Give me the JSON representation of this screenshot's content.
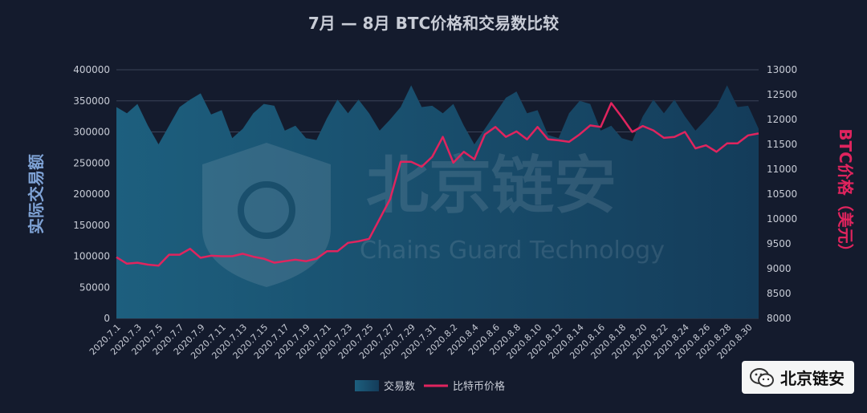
{
  "colors": {
    "background": "#141b2d",
    "area": "#1e5a78",
    "line": "#e0245e",
    "text": "#c8ccd6",
    "left_axis_label": "#7fa3d6",
    "right_axis_label": "#e0245e"
  },
  "watermark": {
    "title": "北京链安",
    "subtitle": "Chains Guard Technology"
  },
  "badge": {
    "icon": "wechat-icon",
    "text": "北京链安"
  },
  "chart_data": {
    "type": "area+line",
    "title": "7月 — 8月 BTC价格和交易数比较",
    "ylabel_left": "实际交易额",
    "ylabel_right": "BTC价格（美元）",
    "ylim_left": [
      0,
      400000
    ],
    "yticks_left": [
      0,
      50000,
      100000,
      150000,
      200000,
      250000,
      300000,
      350000,
      400000
    ],
    "ylim_right": [
      8000,
      13000
    ],
    "yticks_right": [
      8000,
      8500,
      9000,
      9500,
      10000,
      10500,
      11000,
      11500,
      12000,
      12500,
      13000
    ],
    "legend_position": "bottom",
    "grid": true,
    "x_labels_shown": [
      "2020.7.1",
      "2020.7.3",
      "2020.7.5",
      "2020.7.7",
      "2020.7.9",
      "2020.7.11",
      "2020.7.13",
      "2020.7.15",
      "2020.7.17",
      "2020.7.19",
      "2020.7.21",
      "2020.7.23",
      "2020.7.25",
      "2020.7.27",
      "2020.7.29",
      "2020.7.31",
      "2020.8.2",
      "2020.8.4",
      "2020.8.6",
      "2020.8.8",
      "2020.8.10",
      "2020.8.12",
      "2020.8.14",
      "2020.8.16",
      "2020.8.18",
      "2020.8.20",
      "2020.8.22",
      "2020.8.24",
      "2020.8.26",
      "2020.8.28",
      "2020.8.30"
    ],
    "series": [
      {
        "name": "交易数",
        "type": "area",
        "axis": "left",
        "values": [
          340000,
          330000,
          345000,
          310000,
          280000,
          310000,
          340000,
          352000,
          362000,
          328000,
          335000,
          290000,
          305000,
          330000,
          345000,
          342000,
          302000,
          310000,
          290000,
          287000,
          322000,
          352000,
          330000,
          352000,
          330000,
          302000,
          320000,
          340000,
          375000,
          340000,
          342000,
          330000,
          345000,
          310000,
          280000,
          305000,
          330000,
          355000,
          365000,
          330000,
          335000,
          295000,
          290000,
          330000,
          350000,
          345000,
          302000,
          310000,
          290000,
          285000,
          325000,
          352000,
          330000,
          352000,
          325000,
          302000,
          320000,
          340000,
          375000,
          340000,
          342000,
          305000
        ]
      },
      {
        "name": "比特币价格",
        "type": "line",
        "axis": "right",
        "values": [
          9230,
          9100,
          9120,
          9080,
          9060,
          9280,
          9280,
          9400,
          9220,
          9260,
          9250,
          9250,
          9300,
          9240,
          9200,
          9120,
          9150,
          9180,
          9150,
          9200,
          9350,
          9350,
          9520,
          9550,
          9600,
          10000,
          10400,
          11150,
          11150,
          11050,
          11250,
          11650,
          11130,
          11350,
          11200,
          11700,
          11850,
          11650,
          11760,
          11600,
          11850,
          11600,
          11580,
          11550,
          11700,
          11880,
          11850,
          12330,
          12050,
          11750,
          11870,
          11780,
          11630,
          11650,
          11750,
          11420,
          11480,
          11350,
          11520,
          11520,
          11680,
          11720
        ]
      }
    ]
  }
}
